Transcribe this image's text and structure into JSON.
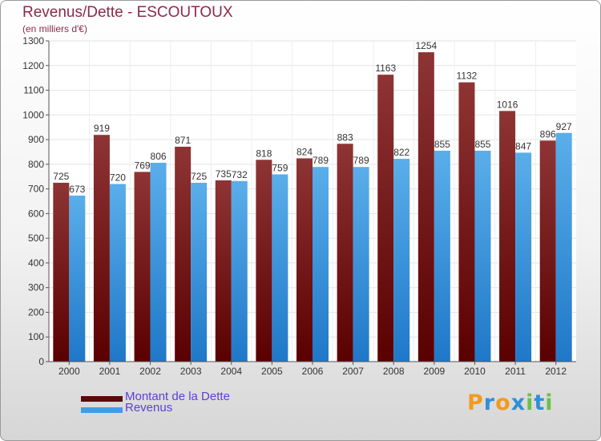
{
  "chart_data": {
    "type": "bar",
    "title": "Revenus/Dette - ESCOUTOUX",
    "subtitle": "(en milliers d'€)",
    "categories": [
      "2000",
      "2001",
      "2002",
      "2003",
      "2004",
      "2005",
      "2006",
      "2007",
      "2008",
      "2009",
      "2010",
      "2011",
      "2012"
    ],
    "series": [
      {
        "name": "Montant de la Dette",
        "color": "#7a1e1e",
        "values": [
          725,
          919,
          769,
          871,
          735,
          818,
          824,
          883,
          1163,
          1254,
          1132,
          1016,
          896
        ]
      },
      {
        "name": "Revenus",
        "color": "#3f9ee3",
        "values": [
          673,
          720,
          806,
          725,
          732,
          759,
          789,
          789,
          822,
          855,
          855,
          847,
          927
        ]
      }
    ],
    "ylim": [
      0,
      1300
    ],
    "yticks": [
      0,
      100,
      200,
      300,
      400,
      500,
      600,
      700,
      800,
      900,
      1000,
      1100,
      1200,
      1300
    ],
    "grid": true,
    "legend": "bottom-left"
  },
  "logo": {
    "letters": [
      "P",
      "r",
      "o",
      "x",
      "i",
      "t",
      "i"
    ],
    "colors": [
      "#f39a1e",
      "#2f8fd8",
      "#f39a1e",
      "#2f8fd8",
      "#6cc04a",
      "#2f8fd8",
      "#6cc04a"
    ]
  }
}
